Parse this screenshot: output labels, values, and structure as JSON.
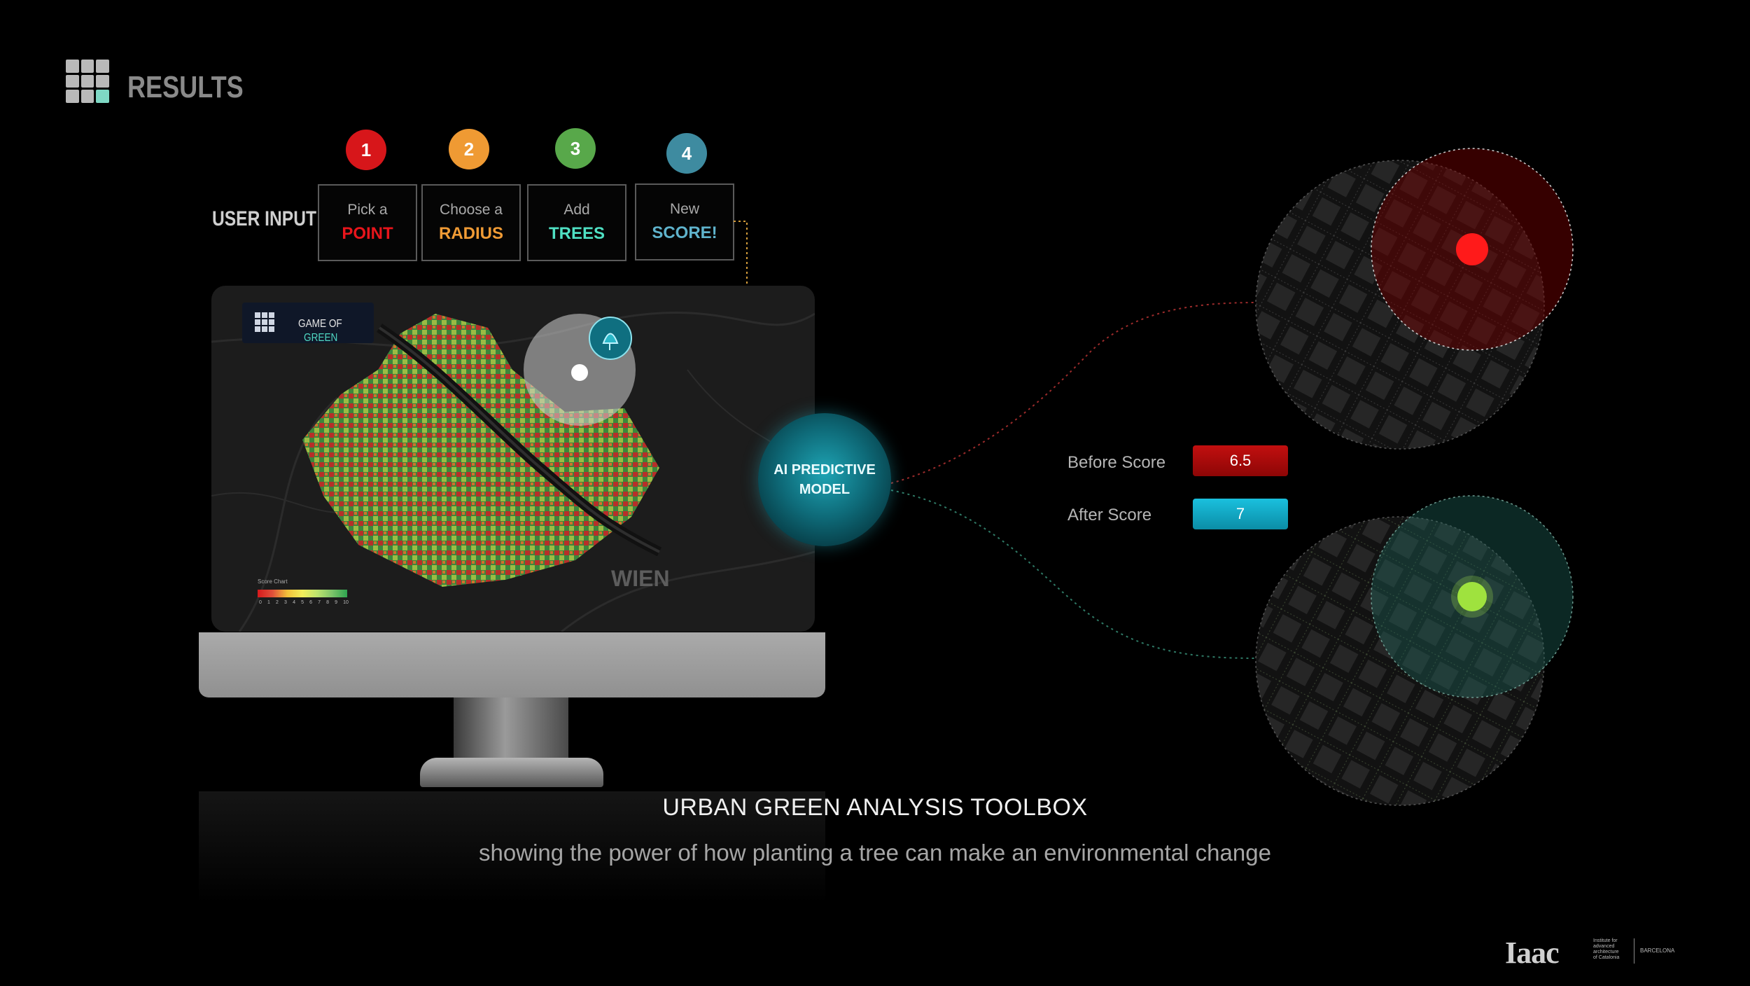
{
  "header": {
    "title": "RESULTS"
  },
  "user_input": {
    "label": "USER INPUT",
    "steps": [
      {
        "number": "1",
        "top": "Pick a",
        "bottom": "POINT",
        "color": "#d7161a"
      },
      {
        "number": "2",
        "top": "Choose a",
        "bottom": "RADIUS",
        "color": "#ef9a33"
      },
      {
        "number": "3",
        "top": "Add",
        "bottom": "TREES",
        "color": "#58a84a",
        "text_color": "#4fe0c3"
      },
      {
        "number": "4",
        "top": "New",
        "bottom": "SCORE!",
        "color": "#3e8ba0",
        "text_color": "#5fb3cc"
      }
    ]
  },
  "monitor": {
    "badge": {
      "line1": "GAME OF",
      "line2": "GREEN"
    },
    "city_label": "WIEN",
    "legend": {
      "title": "Score Chart",
      "ticks": [
        "0",
        "1",
        "2",
        "3",
        "4",
        "5",
        "6",
        "7",
        "8",
        "9",
        "10"
      ]
    }
  },
  "ai_model": {
    "line1": "AI PREDICTIVE",
    "line2": "MODEL"
  },
  "scores": {
    "before_label": "Before Score",
    "before_value": "6.5",
    "after_label": "After Score",
    "after_value": "7"
  },
  "footer": {
    "title": "URBAN GREEN ANALYSIS TOOLBOX",
    "subtitle": "showing the power of how planting a tree can make an environmental change"
  },
  "branding": {
    "logo": "Iaac",
    "info": [
      "Institute for",
      "advanced",
      "architecture",
      "of Catalonia"
    ],
    "city": "BARCELONA"
  },
  "colors": {
    "before": "#c20f0f",
    "after": "#1ac0de",
    "teal_accent": "#4fd7c3"
  }
}
